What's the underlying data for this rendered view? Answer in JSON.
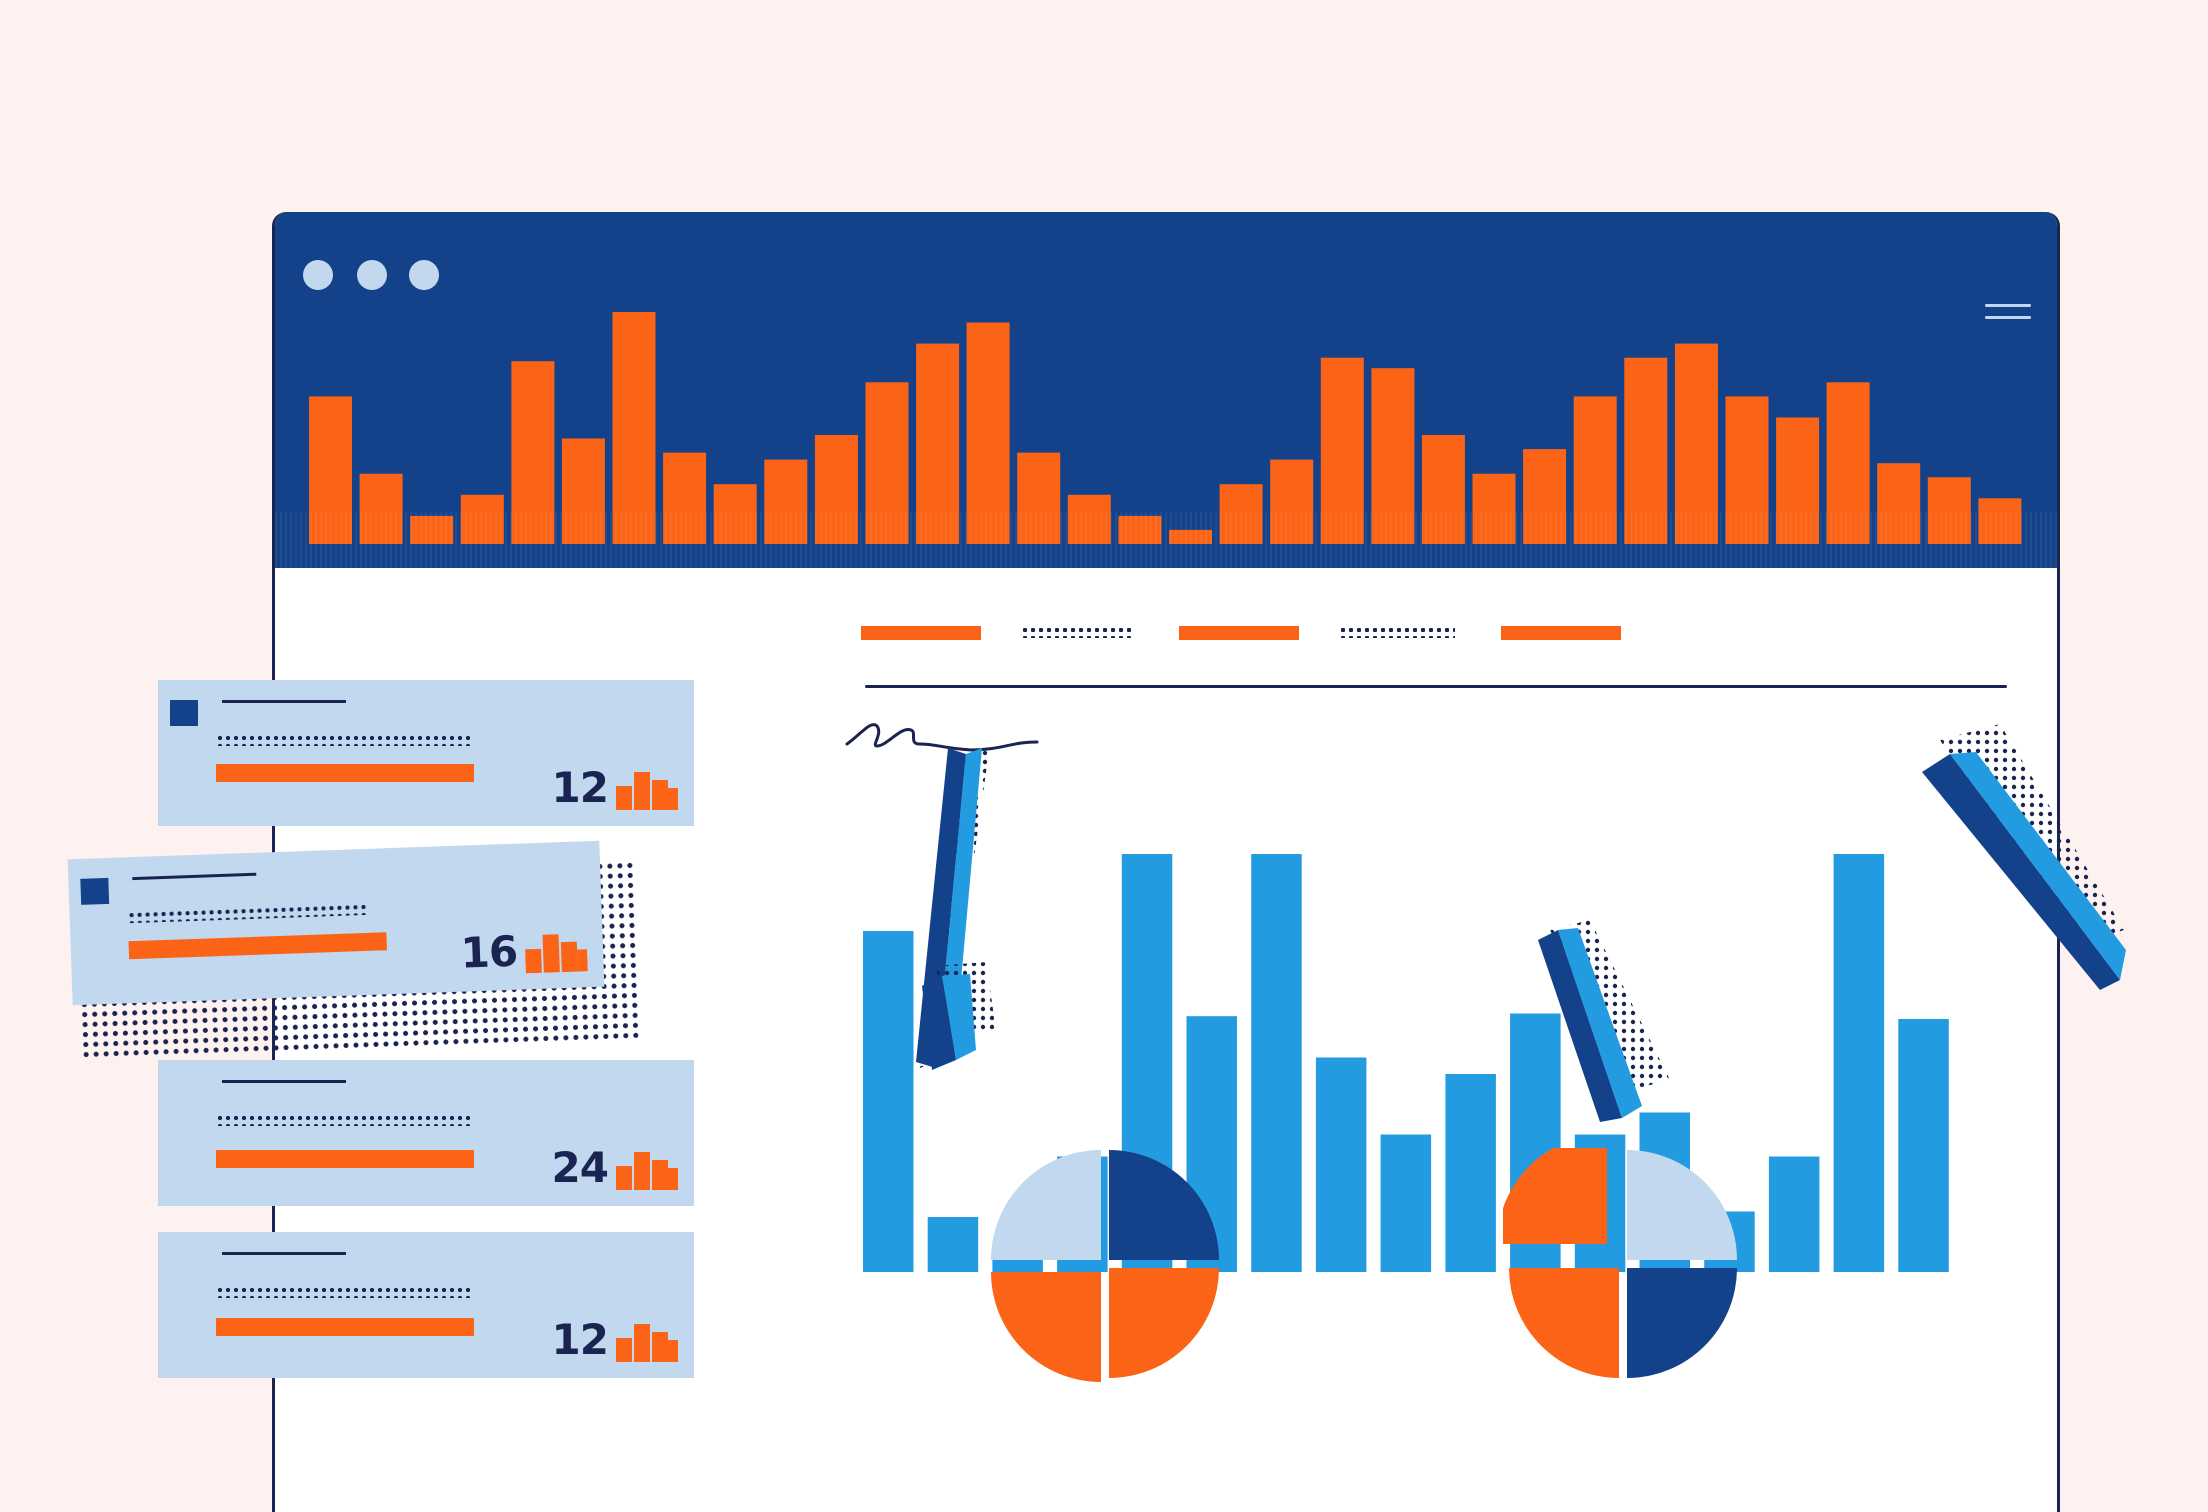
{
  "colors": {
    "background": "#fdf2f0",
    "window_titlebar": "#14428a",
    "accent_orange": "#fb6416",
    "accent_blue": "#239be0",
    "pale_blue": "#c2d8ee",
    "ink": "#1b2350"
  },
  "window": {
    "control_dots": 3,
    "menu_icon": "hamburger-icon"
  },
  "header_chart": {
    "type": "bar",
    "values": [
      42,
      20,
      8,
      14,
      52,
      30,
      66,
      26,
      17,
      24,
      31,
      46,
      57,
      63,
      26,
      14,
      8,
      4,
      17,
      24,
      53,
      50,
      31,
      20,
      27,
      42,
      53,
      57,
      42,
      36,
      46,
      23,
      19,
      13
    ]
  },
  "content_tabs": [
    {
      "style": "solid"
    },
    {
      "style": "dotted"
    },
    {
      "style": "solid"
    },
    {
      "style": "dotted"
    },
    {
      "style": "solid"
    }
  ],
  "main_chart": {
    "type": "bar",
    "values": [
      124,
      20,
      10,
      42,
      152,
      93,
      152,
      78,
      50,
      72,
      94,
      50,
      58,
      22,
      42,
      152,
      92
    ]
  },
  "pies": [
    {
      "quadrants": [
        "pale",
        "dark",
        "orange",
        "orange"
      ]
    },
    {
      "quadrants": [
        "orange",
        "pale",
        "orange",
        "dark"
      ]
    }
  ],
  "cards": [
    {
      "count": "12"
    },
    {
      "count": "16"
    },
    {
      "count": "24"
    },
    {
      "count": "12"
    }
  ]
}
